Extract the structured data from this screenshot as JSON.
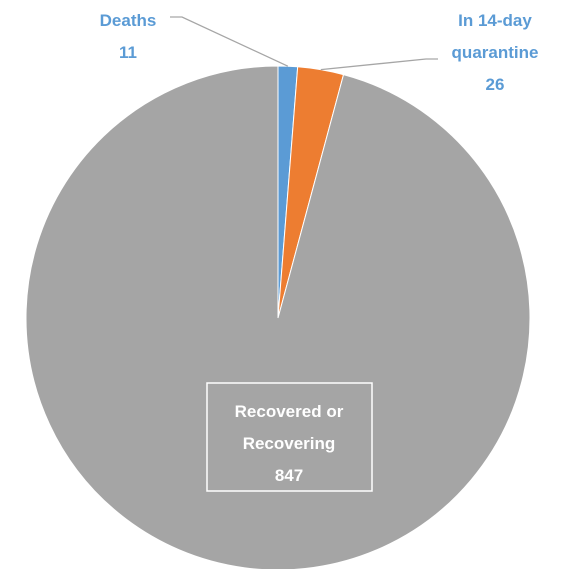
{
  "chart_data": {
    "type": "pie",
    "title": "",
    "slices": [
      {
        "name": "Deaths",
        "value": 11,
        "label_lines": [
          "Deaths"
        ],
        "color": "#5b9bd5",
        "label_color": "#5b9bd5"
      },
      {
        "name": "In 14-day quarantine",
        "value": 26,
        "label_lines": [
          "In 14-day",
          "quarantine"
        ],
        "color": "#ed7d31",
        "label_color": "#5b9bd5"
      },
      {
        "name": "Recovered or Recovering",
        "value": 847,
        "label_lines": [
          "Recovered or",
          "Recovering"
        ],
        "color": "#a5a5a5",
        "label_color": "#ffffff"
      }
    ],
    "start_angle_degrees": 0,
    "direction": "clockwise",
    "legend": "none",
    "data_labels": "category name and value",
    "border_color": "#ffffff"
  }
}
